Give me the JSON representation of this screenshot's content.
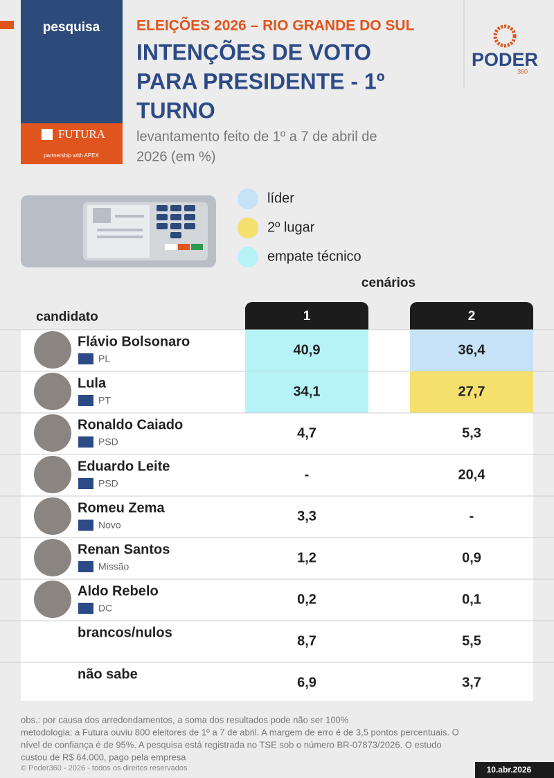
{
  "header": {
    "tag": "pesquisa",
    "sponsor": "FUTURA",
    "sponsor_sub": "partnership with APEX",
    "kicker": "ELEIÇÕES 2026 – RIO GRANDE DO SUL",
    "title": [
      "INTENÇÕES DE VOTO",
      "PARA PRESIDENTE - 1º",
      "TURNO"
    ],
    "subtitle": [
      "levantamento feito de 1º a 7 de abril de",
      "2026 (em %)"
    ],
    "brand": "PODER",
    "brand_sub": "360"
  },
  "legend": [
    {
      "label": "líder",
      "color": "#c6e2f7"
    },
    {
      "label": "2º lugar",
      "color": "#f5e06e"
    },
    {
      "label": "empate técnico",
      "color": "#b5f3f7"
    }
  ],
  "table": {
    "group_label": "cenários",
    "column_label": "candidato",
    "scenarios": [
      "1",
      "2"
    ],
    "rows": [
      {
        "name": "Flávio Bolsonaro",
        "party": "PL",
        "values": [
          "40,9",
          "36,4"
        ],
        "fills": [
          "#b5f3f7",
          "#c6e2f7"
        ]
      },
      {
        "name": "Lula",
        "party": "PT",
        "values": [
          "34,1",
          "27,7"
        ],
        "fills": [
          "#b5f3f7",
          "#f5e06e"
        ]
      },
      {
        "name": "Ronaldo Caiado",
        "party": "PSD",
        "values": [
          "4,7",
          "5,3"
        ]
      },
      {
        "name": "Eduardo Leite",
        "party": "PSD",
        "values": [
          "-",
          "20,4"
        ]
      },
      {
        "name": "Romeu Zema",
        "party": "Novo",
        "values": [
          "3,3",
          "-"
        ]
      },
      {
        "name": "Renan Santos",
        "party": "Missão",
        "values": [
          "1,2",
          "0,9"
        ]
      },
      {
        "name": "Aldo Rebelo",
        "party": "DC",
        "values": [
          "0,2",
          "0,1"
        ]
      },
      {
        "name": "brancos/nulos",
        "values": [
          "8,7",
          "5,5"
        ]
      },
      {
        "name": "não sabe",
        "values": [
          "6,9",
          "3,7"
        ]
      }
    ]
  },
  "footer": {
    "notes": [
      "obs.: por causa dos arredondamentos, a soma dos resultados pode não ser 100%",
      "metodologia: a Futura ouviu 800 eleitores de 1º a 7 de abril. A margem de erro é de 3,5 pontos percentuais. O",
      "nível de confiança é de 95%. A pesquisa está registrada no TSE sob o número BR-07873/2026. O estudo",
      "custou de R$ 64.000, pago pela empresa"
    ],
    "copyright": "© Poder360 - 2026 - todos os direitos reservados",
    "date": "10.abr.2026"
  }
}
